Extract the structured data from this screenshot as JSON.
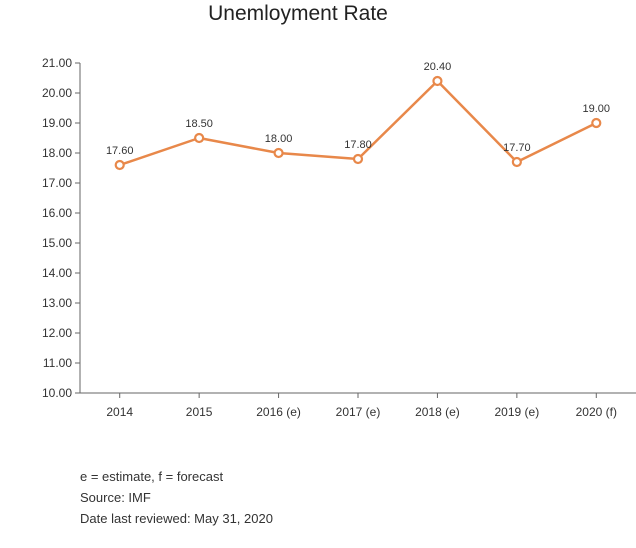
{
  "chart_data": {
    "type": "line",
    "title": "Unemloyment Rate",
    "xlabel": "",
    "ylabel": "",
    "categories": [
      "2014",
      "2015",
      "2016 (e)",
      "2017 (e)",
      "2018 (e)",
      "2019 (e)",
      "2020 (f)"
    ],
    "series": [
      {
        "values": [
          17.6,
          18.5,
          18.0,
          17.8,
          20.4,
          17.7,
          19.0
        ]
      }
    ],
    "data_labels": [
      "17.60",
      "18.50",
      "18.00",
      "17.80",
      "20.40",
      "17.70",
      "19.00"
    ],
    "y_ticks": [
      "10.00",
      "11.00",
      "12.00",
      "13.00",
      "14.00",
      "15.00",
      "16.00",
      "17.00",
      "18.00",
      "19.00",
      "20.00",
      "21.00"
    ],
    "ylim": [
      10,
      21
    ],
    "grid": false,
    "line_color": "#e8884a"
  },
  "notes": {
    "line1": "e = estimate, f = forecast",
    "line2": "Source: IMF",
    "line3": "Date last reviewed: May 31, 2020"
  }
}
